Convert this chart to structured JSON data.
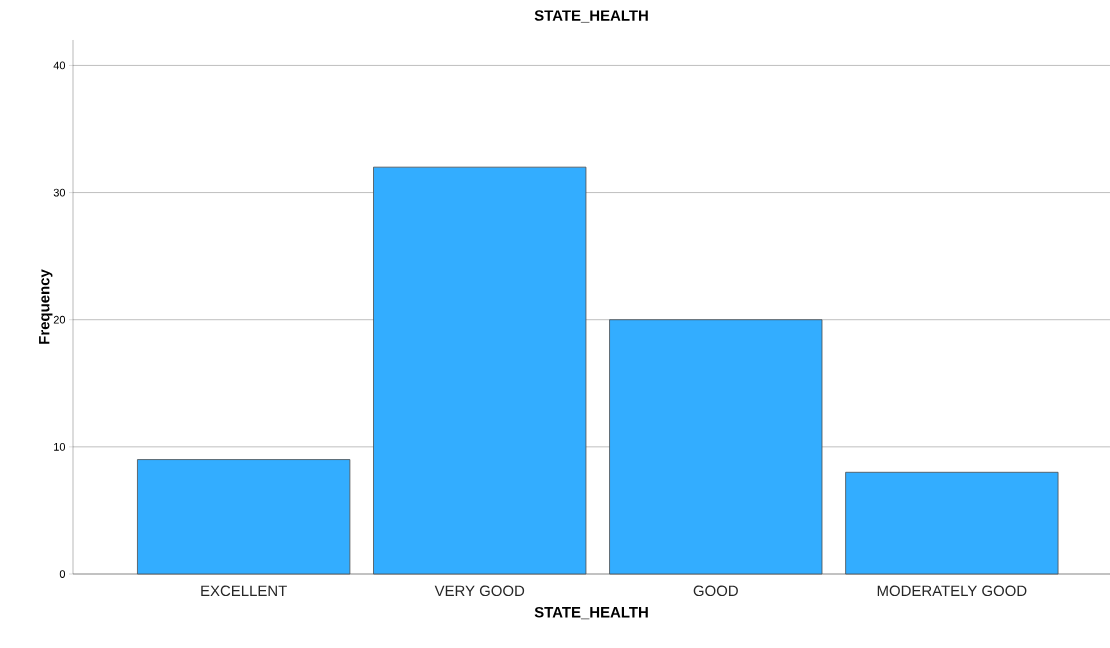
{
  "chart_data": {
    "type": "bar",
    "title": "STATE_HEALTH",
    "xlabel": "STATE_HEALTH",
    "ylabel": "Frequency",
    "categories": [
      "EXCELLENT",
      "VERY GOOD",
      "GOOD",
      "MODERATELY GOOD"
    ],
    "values": [
      9,
      32,
      20,
      8
    ],
    "color": "#33adff",
    "ylim": [
      0,
      42
    ],
    "yticks": [
      0,
      10,
      20,
      30,
      40
    ],
    "grid": "y"
  }
}
